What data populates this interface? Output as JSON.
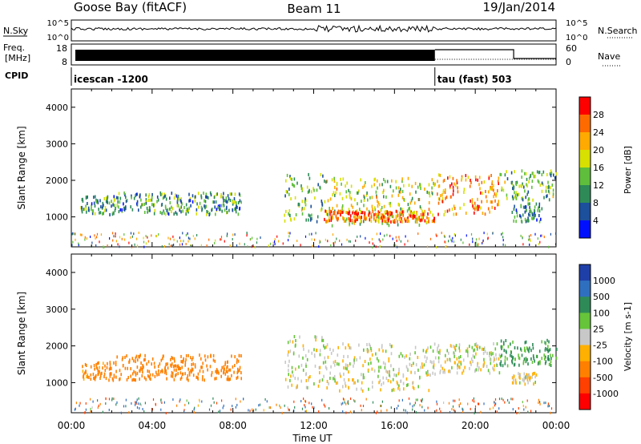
{
  "header": {
    "station": "Goose Bay (fitACF)",
    "beam": "Beam 11",
    "date": "19/Jan/2014"
  },
  "noise_panel": {
    "left_label": "N.Sky",
    "right_label": "N.Search",
    "ticks": [
      "10^5",
      "10^0"
    ]
  },
  "freq_panel": {
    "left_label_1": "Freq.",
    "left_label_2": "[MHz]",
    "left_ticks": [
      "18",
      "8"
    ],
    "right_label": "Nave",
    "right_ticks": [
      "60",
      "0"
    ]
  },
  "cpid": {
    "label": "CPID",
    "segments": [
      {
        "name": "icescan -1200",
        "start_hour": 0
      },
      {
        "name": "tau (fast) 503",
        "start_hour": 18
      }
    ]
  },
  "time_axis": {
    "title": "Time UT",
    "ticks": [
      "00:00",
      "04:00",
      "08:00",
      "12:00",
      "16:00",
      "20:00",
      "00:00"
    ]
  },
  "power_scale": {
    "title": "Power [dB]",
    "tick_labels": [
      "28",
      "24",
      "20",
      "16",
      "12",
      "8",
      "4"
    ],
    "colors": [
      "#ff0000",
      "#ff6a00",
      "#ffaa00",
      "#d7e000",
      "#5fbf3c",
      "#2e8b57",
      "#1c4f9c",
      "#0010ff"
    ]
  },
  "velocity_scale": {
    "title": "Velocity [m s-1]",
    "tick_labels": [
      "1000",
      "500",
      "100",
      "25",
      "-25",
      "-100",
      "-500",
      "-1000"
    ],
    "colors": [
      "#1f3fa8",
      "#2f6fbf",
      "#2e8b57",
      "#66c43a",
      "#c8c8c8",
      "#ffb000",
      "#ff8000",
      "#ff4000",
      "#ff0000"
    ]
  },
  "chart_data": [
    {
      "type": "heatmap",
      "quantity": "Power",
      "ylabel": "Slant Range [km]",
      "xlabel": "Time UT",
      "xlim": [
        0,
        24
      ],
      "ylim": [
        180,
        4500
      ],
      "y_ticks": [
        1000,
        2000,
        3000,
        4000
      ],
      "zlim": [
        0,
        30
      ],
      "echo_regions": [
        {
          "t": [
            0.4,
            2.2
          ],
          "range": [
            1100,
            1600
          ],
          "value": 10
        },
        {
          "t": [
            2.2,
            8.4
          ],
          "range": [
            1100,
            1700
          ],
          "value": 10
        },
        {
          "t": [
            10.5,
            12.5
          ],
          "range": [
            900,
            2200
          ],
          "value": 12
        },
        {
          "t": [
            12.5,
            18.0
          ],
          "range": [
            800,
            2100
          ],
          "value": 16
        },
        {
          "t": [
            12.5,
            18.0
          ],
          "range": [
            900,
            1200
          ],
          "value": 24
        },
        {
          "t": [
            18.0,
            21.2
          ],
          "range": [
            1100,
            2200
          ],
          "value": 22
        },
        {
          "t": [
            21.2,
            24.0
          ],
          "range": [
            1500,
            2300
          ],
          "value": 12
        },
        {
          "t": [
            21.8,
            23.3
          ],
          "range": [
            900,
            1400
          ],
          "value": 8
        }
      ]
    },
    {
      "type": "heatmap",
      "quantity": "Velocity",
      "ylabel": "Slant Range [km]",
      "xlabel": "Time UT",
      "xlim": [
        0,
        24
      ],
      "ylim": [
        180,
        4500
      ],
      "y_ticks": [
        1000,
        2000,
        3000,
        4000
      ],
      "zlim": [
        -1000,
        1000
      ],
      "echo_regions": [
        {
          "t": [
            0.4,
            2.2
          ],
          "range": [
            1100,
            1600
          ],
          "value": -150
        },
        {
          "t": [
            2.2,
            8.4
          ],
          "range": [
            1100,
            1800
          ],
          "value": -200
        },
        {
          "t": [
            10.5,
            12.5
          ],
          "range": [
            900,
            2300
          ],
          "value": 0
        },
        {
          "t": [
            12.5,
            18.0
          ],
          "range": [
            800,
            2100
          ],
          "value": 0
        },
        {
          "t": [
            18.0,
            21.2
          ],
          "range": [
            1300,
            2100
          ],
          "value": 0
        },
        {
          "t": [
            21.2,
            24.0
          ],
          "range": [
            1500,
            2200
          ],
          "value": 120
        },
        {
          "t": [
            21.8,
            23.0
          ],
          "range": [
            1000,
            1300
          ],
          "value": -30
        }
      ]
    }
  ]
}
